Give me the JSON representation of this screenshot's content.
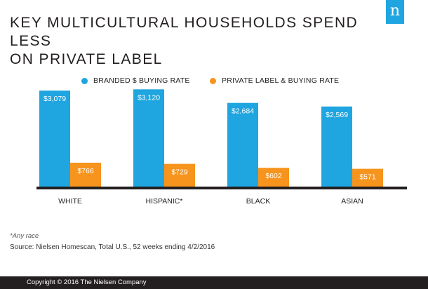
{
  "header": {
    "title_line1": "KEY MULTICULTURAL HOUSEHOLDS SPEND LESS",
    "title_line2": "ON PRIVATE LABEL",
    "logo_letter": "n"
  },
  "colors": {
    "branded": "#1fa5e0",
    "private_label": "#f7941d",
    "text": "#231f20",
    "footer_bg": "#231f20"
  },
  "chart_data": {
    "type": "bar",
    "title": "KEY MULTICULTURAL HOUSEHOLDS SPEND LESS ON PRIVATE LABEL",
    "categories": [
      "WHITE",
      "HISPANIC*",
      "BLACK",
      "ASIAN"
    ],
    "series": [
      {
        "name": "BRANDED $ BUYING RATE",
        "values": [
          3079,
          3120,
          2684,
          2569
        ],
        "labels": [
          "$3,079",
          "$3,120",
          "$2,684",
          "$2,569"
        ]
      },
      {
        "name": "PRIVATE LABEL & BUYING RATE",
        "values": [
          766,
          729,
          602,
          571
        ],
        "labels": [
          "$766",
          "$729",
          "$602",
          "$571"
        ]
      }
    ],
    "ylim": [
      0,
      3600
    ],
    "grid": false,
    "legend_position": "top"
  },
  "footnote": "*Any race",
  "source": "Source: Nielsen Homescan, Total U.S., 52 weeks ending 4/2/2016",
  "footer": {
    "copyright": "Copyright © 2016 The Nielsen Company"
  }
}
